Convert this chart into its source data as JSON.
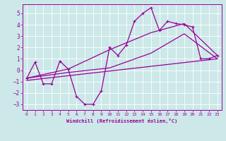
{
  "xlabel": "Windchill (Refroidissement éolien,°C)",
  "bg_color": "#cce8e8",
  "grid_color": "#ffffff",
  "line_color": "#990099",
  "xlim": [
    -0.5,
    23.5
  ],
  "ylim": [
    -3.5,
    5.8
  ],
  "yticks": [
    -3,
    -2,
    -1,
    0,
    1,
    2,
    3,
    4,
    5
  ],
  "xticks": [
    0,
    1,
    2,
    3,
    4,
    5,
    6,
    7,
    8,
    9,
    10,
    11,
    12,
    13,
    14,
    15,
    16,
    17,
    18,
    19,
    20,
    21,
    22,
    23
  ],
  "main_x": [
    0,
    1,
    2,
    3,
    4,
    5,
    6,
    7,
    8,
    9,
    10,
    11,
    12,
    13,
    14,
    15,
    16,
    17,
    18,
    19,
    20,
    21,
    22,
    23
  ],
  "main_y": [
    -0.7,
    0.7,
    -1.2,
    -1.2,
    0.8,
    0.1,
    -2.3,
    -3.0,
    -3.0,
    -1.8,
    2.0,
    1.3,
    2.2,
    4.3,
    5.0,
    5.5,
    3.5,
    4.3,
    4.1,
    4.0,
    3.8,
    1.0,
    1.0,
    1.3
  ],
  "upper_x": [
    0,
    5,
    10,
    15,
    19,
    23
  ],
  "upper_y": [
    -0.7,
    0.1,
    1.8,
    3.3,
    4.1,
    1.3
  ],
  "lower_x": [
    0,
    5,
    10,
    15,
    19,
    23
  ],
  "lower_y": [
    -0.7,
    -0.2,
    0.2,
    1.5,
    3.2,
    1.0
  ],
  "trend_x": [
    0,
    23
  ],
  "trend_y": [
    -0.9,
    1.0
  ]
}
